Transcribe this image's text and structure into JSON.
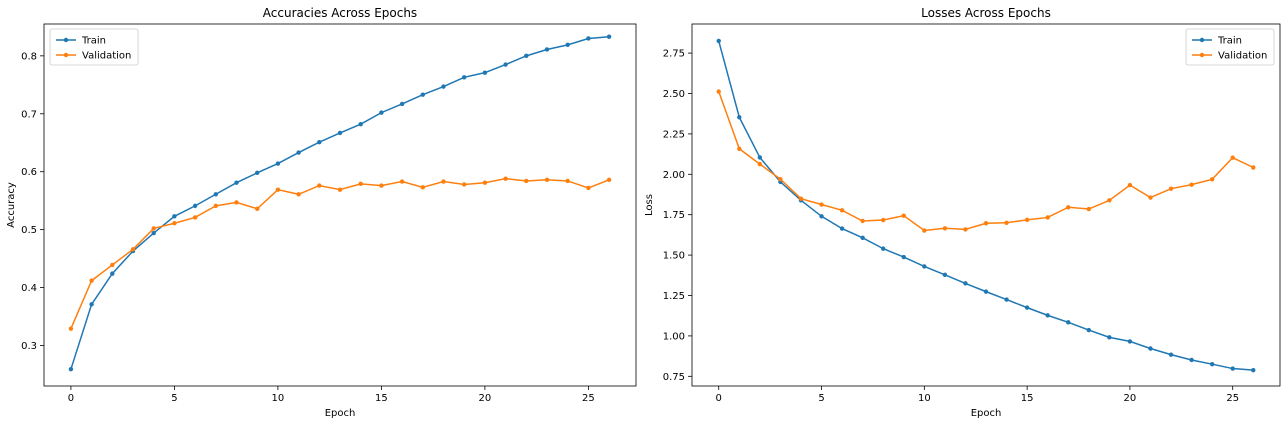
{
  "chart_data": [
    {
      "type": "line",
      "title": "Accuracies Across Epochs",
      "xlabel": "Epoch",
      "ylabel": "Accuracy",
      "xlim": [
        -1.3,
        27.3
      ],
      "ylim": [
        0.23,
        0.855
      ],
      "xticks": [
        0,
        5,
        10,
        15,
        20,
        25
      ],
      "yticks": [
        0.3,
        0.4,
        0.5,
        0.6,
        0.7,
        0.8
      ],
      "grid": false,
      "legend": "top-left",
      "x": [
        0,
        1,
        2,
        3,
        4,
        5,
        6,
        7,
        8,
        9,
        10,
        11,
        12,
        13,
        14,
        15,
        16,
        17,
        18,
        19,
        20,
        21,
        22,
        23,
        24,
        25,
        26
      ],
      "series": [
        {
          "name": "Train",
          "color": "#1f77b4",
          "values": [
            0.259,
            0.371,
            0.424,
            0.463,
            0.494,
            0.523,
            0.541,
            0.561,
            0.581,
            0.598,
            0.614,
            0.633,
            0.651,
            0.667,
            0.682,
            0.702,
            0.717,
            0.733,
            0.747,
            0.763,
            0.771,
            0.785,
            0.8,
            0.811,
            0.819,
            0.83,
            0.833
          ]
        },
        {
          "name": "Validation",
          "color": "#ff7f0e",
          "values": [
            0.329,
            0.412,
            0.439,
            0.466,
            0.502,
            0.511,
            0.521,
            0.541,
            0.547,
            0.536,
            0.569,
            0.561,
            0.576,
            0.569,
            0.579,
            0.576,
            0.583,
            0.573,
            0.583,
            0.578,
            0.581,
            0.588,
            0.584,
            0.586,
            0.584,
            0.572,
            0.586
          ]
        }
      ]
    },
    {
      "type": "line",
      "title": "Losses Across Epochs",
      "xlabel": "Epoch",
      "ylabel": "Loss",
      "xlim": [
        -1.3,
        27.3
      ],
      "ylim": [
        0.69,
        2.93
      ],
      "xticks": [
        0,
        5,
        10,
        15,
        20,
        25
      ],
      "yticks": [
        0.75,
        1.0,
        1.25,
        1.5,
        1.75,
        2.0,
        2.25,
        2.5,
        2.75
      ],
      "grid": false,
      "legend": "top-right",
      "x": [
        0,
        1,
        2,
        3,
        4,
        5,
        6,
        7,
        8,
        9,
        10,
        11,
        12,
        13,
        14,
        15,
        16,
        17,
        18,
        19,
        20,
        21,
        22,
        23,
        24,
        25,
        26
      ],
      "series": [
        {
          "name": "Train",
          "color": "#1f77b4",
          "values": [
            2.825,
            2.353,
            2.104,
            1.953,
            1.839,
            1.74,
            1.664,
            1.607,
            1.54,
            1.488,
            1.43,
            1.378,
            1.325,
            1.274,
            1.225,
            1.175,
            1.127,
            1.084,
            1.036,
            0.991,
            0.966,
            0.922,
            0.884,
            0.851,
            0.825,
            0.798,
            0.788
          ]
        },
        {
          "name": "Validation",
          "color": "#ff7f0e",
          "values": [
            2.512,
            2.158,
            2.063,
            1.97,
            1.849,
            1.813,
            1.777,
            1.711,
            1.717,
            1.744,
            1.652,
            1.666,
            1.659,
            1.697,
            1.7,
            1.718,
            1.733,
            1.796,
            1.785,
            1.839,
            1.933,
            1.856,
            1.911,
            1.936,
            1.969,
            2.103,
            2.042
          ]
        }
      ]
    }
  ]
}
